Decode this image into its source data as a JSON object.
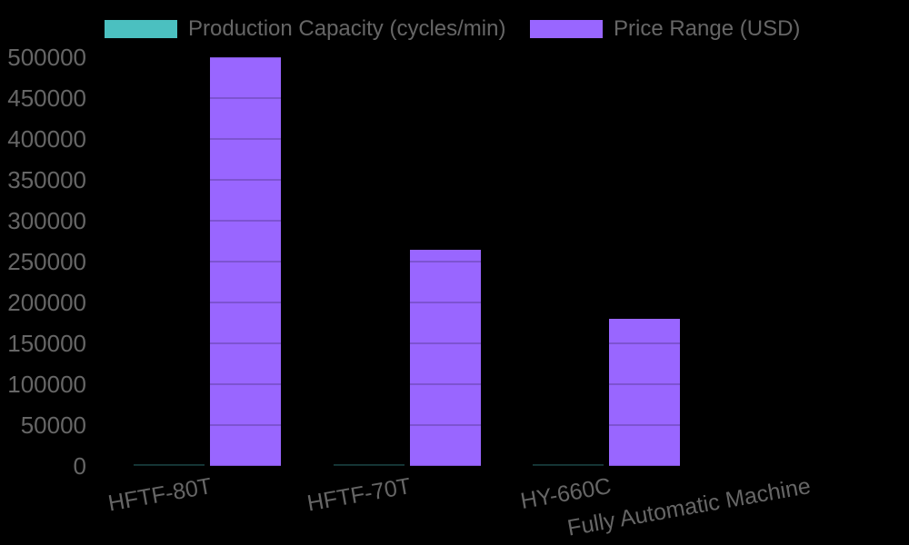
{
  "colors": {
    "background": "#000000",
    "teal": "#4BC0C0",
    "teal_dim": "rgba(75,192,192,0.3)",
    "purple": "#9966FF",
    "text": "#666666",
    "grid_over_bar": "rgba(0,0,0,0.18)"
  },
  "chart_data": {
    "type": "bar",
    "title": "",
    "xlabel": "",
    "ylabel": "",
    "categories": [
      "HFTF-80T",
      "HFTF-70T",
      "HY-660C",
      "Fully Automatic Machine"
    ],
    "series": [
      {
        "name": "Production Capacity (cycles/min)",
        "color": "#4BC0C0",
        "values": [
          1500,
          1500,
          1500,
          0
        ],
        "note": "rendered as near-zero thin lines at this axis scale"
      },
      {
        "name": "Price Range (USD)",
        "color": "#9966FF",
        "values": [
          500000,
          265000,
          180000,
          0
        ]
      }
    ],
    "ylim": [
      0,
      500000
    ],
    "ytick_step": 50000,
    "yticks": [
      0,
      50000,
      100000,
      150000,
      200000,
      250000,
      300000,
      350000,
      400000,
      450000,
      500000
    ],
    "legend_position": "top",
    "x_tick_rotation_deg": -10,
    "grid": "horizontal gridlines, only visible where they cross bars"
  }
}
